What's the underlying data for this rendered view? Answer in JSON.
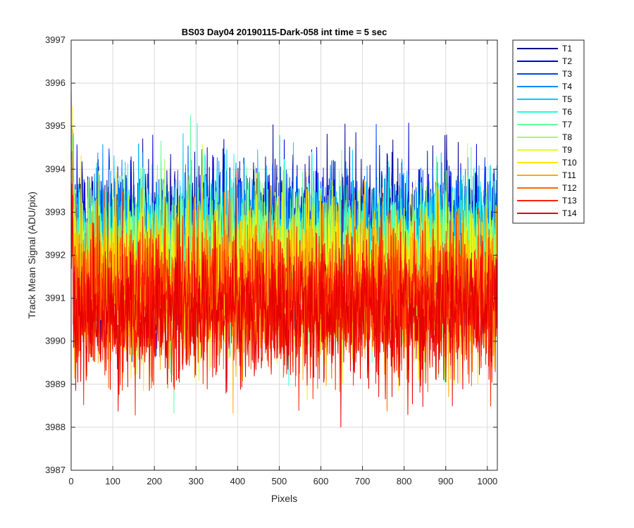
{
  "chart_data": {
    "type": "line",
    "title": "BS03 Day04 20190115-Dark-058 int time = 5 sec",
    "xlabel": "Pixels",
    "ylabel": "Track Mean Signal (ADU/pix)",
    "xlim": [
      0,
      1024
    ],
    "ylim": [
      3987,
      3997
    ],
    "xticks": [
      0,
      100,
      200,
      300,
      400,
      500,
      600,
      700,
      800,
      900,
      1000
    ],
    "yticks": [
      3987,
      3988,
      3989,
      3990,
      3991,
      3992,
      3993,
      3994,
      3995,
      3996,
      3997
    ],
    "grid": true,
    "legend_position": "outside-top-right",
    "n_points": 1024,
    "series": [
      {
        "name": "T1",
        "color": "#00008f",
        "mean": 3992.5,
        "noise": 0.85
      },
      {
        "name": "T2",
        "color": "#0000d6",
        "mean": 3992.4,
        "noise": 0.85
      },
      {
        "name": "T3",
        "color": "#0044ff",
        "mean": 3992.3,
        "noise": 0.85
      },
      {
        "name": "T4",
        "color": "#0088ff",
        "mean": 3992.2,
        "noise": 0.85
      },
      {
        "name": "T5",
        "color": "#00ccff",
        "mean": 3992.1,
        "noise": 0.85
      },
      {
        "name": "T6",
        "color": "#20ffdf",
        "mean": 3992.0,
        "noise": 0.85
      },
      {
        "name": "T7",
        "color": "#66ffa0",
        "mean": 3991.9,
        "noise": 0.85
      },
      {
        "name": "T8",
        "color": "#a0ff60",
        "mean": 3991.8,
        "noise": 0.85
      },
      {
        "name": "T9",
        "color": "#dfff20",
        "mean": 3991.6,
        "noise": 0.85
      },
      {
        "name": "T10",
        "color": "#ffe600",
        "mean": 3991.5,
        "noise": 0.85
      },
      {
        "name": "T11",
        "color": "#ffaa00",
        "mean": 3991.3,
        "noise": 0.85
      },
      {
        "name": "T12",
        "color": "#ff6600",
        "mean": 3991.1,
        "noise": 0.85
      },
      {
        "name": "T13",
        "color": "#ff2200",
        "mean": 3990.9,
        "noise": 0.85
      },
      {
        "name": "T14",
        "color": "#e60000",
        "mean": 3990.7,
        "noise": 0.85
      }
    ]
  }
}
